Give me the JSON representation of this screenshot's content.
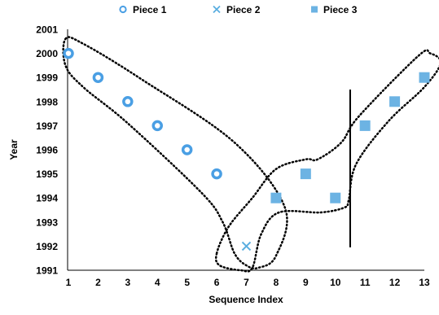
{
  "chart_data": {
    "type": "scatter",
    "title": "",
    "xlabel": "Sequence Index",
    "ylabel": "Year",
    "xlim": [
      1,
      13
    ],
    "ylim": [
      1991,
      2001
    ],
    "xticks": [
      "1",
      "2",
      "3",
      "4",
      "5",
      "6",
      "7",
      "8",
      "9",
      "10",
      "11",
      "12",
      "13"
    ],
    "yticks": [
      "1991",
      "1992",
      "1993",
      "1994",
      "1995",
      "1996",
      "1997",
      "1998",
      "1999",
      "2000",
      "2001"
    ],
    "grid": false,
    "legend_position": "top",
    "series": [
      {
        "name": "Piece 1",
        "marker": "ring",
        "color": "#4a9fe4",
        "points": [
          [
            1,
            2000
          ],
          [
            2,
            1999
          ],
          [
            3,
            1998
          ],
          [
            4,
            1997
          ],
          [
            5,
            1996
          ],
          [
            6,
            1995
          ]
        ]
      },
      {
        "name": "Piece 2",
        "marker": "x",
        "color": "#5aaee0",
        "points": [
          [
            7,
            1992
          ]
        ]
      },
      {
        "name": "Piece 3",
        "marker": "square",
        "color": "#6cb3e3",
        "points": [
          [
            8,
            1994
          ],
          [
            9,
            1995
          ],
          [
            10,
            1994
          ],
          [
            11,
            1997
          ],
          [
            12,
            1998
          ],
          [
            13,
            1999
          ]
        ]
      }
    ],
    "breakpoint_line": {
      "x": 10.5,
      "y_from": 1991.95,
      "y_to": 1998.5
    },
    "outlines": [
      [
        [
          0.9,
          2000.6
        ],
        [
          1.5,
          2000.4
        ],
        [
          3.5,
          1998.9
        ],
        [
          6.6,
          1996.3
        ],
        [
          8.3,
          1993.6
        ],
        [
          8.0,
          1991.6
        ],
        [
          7.4,
          1991.1
        ],
        [
          7.0,
          1991.2
        ],
        [
          6.6,
          1991.7
        ],
        [
          6.2,
          1993.0
        ],
        [
          5.5,
          1994.2
        ],
        [
          3.0,
          1997.1
        ],
        [
          1.5,
          1998.6
        ],
        [
          0.9,
          1999.5
        ],
        [
          0.9,
          2000.6
        ]
      ],
      [
        [
          6.0,
          1991.7
        ],
        [
          6.4,
          1992.8
        ],
        [
          7.2,
          1994.0
        ],
        [
          8.0,
          1995.2
        ],
        [
          9.0,
          1995.6
        ],
        [
          9.4,
          1995.6
        ],
        [
          10.2,
          1996.3
        ],
        [
          10.8,
          1997.4
        ],
        [
          12.8,
          1999.9
        ],
        [
          13.2,
          2000.0
        ],
        [
          13.55,
          1999.6
        ],
        [
          13.0,
          1998.6
        ],
        [
          11.8,
          1997.2
        ],
        [
          10.7,
          1995.4
        ],
        [
          10.45,
          1993.9
        ],
        [
          10.3,
          1993.6
        ],
        [
          9.5,
          1993.4
        ],
        [
          8.1,
          1993.4
        ],
        [
          7.5,
          1992.5
        ],
        [
          7.2,
          1991.1
        ],
        [
          6.8,
          1991.0
        ],
        [
          6.1,
          1991.2
        ],
        [
          6.0,
          1991.7
        ]
      ]
    ]
  }
}
